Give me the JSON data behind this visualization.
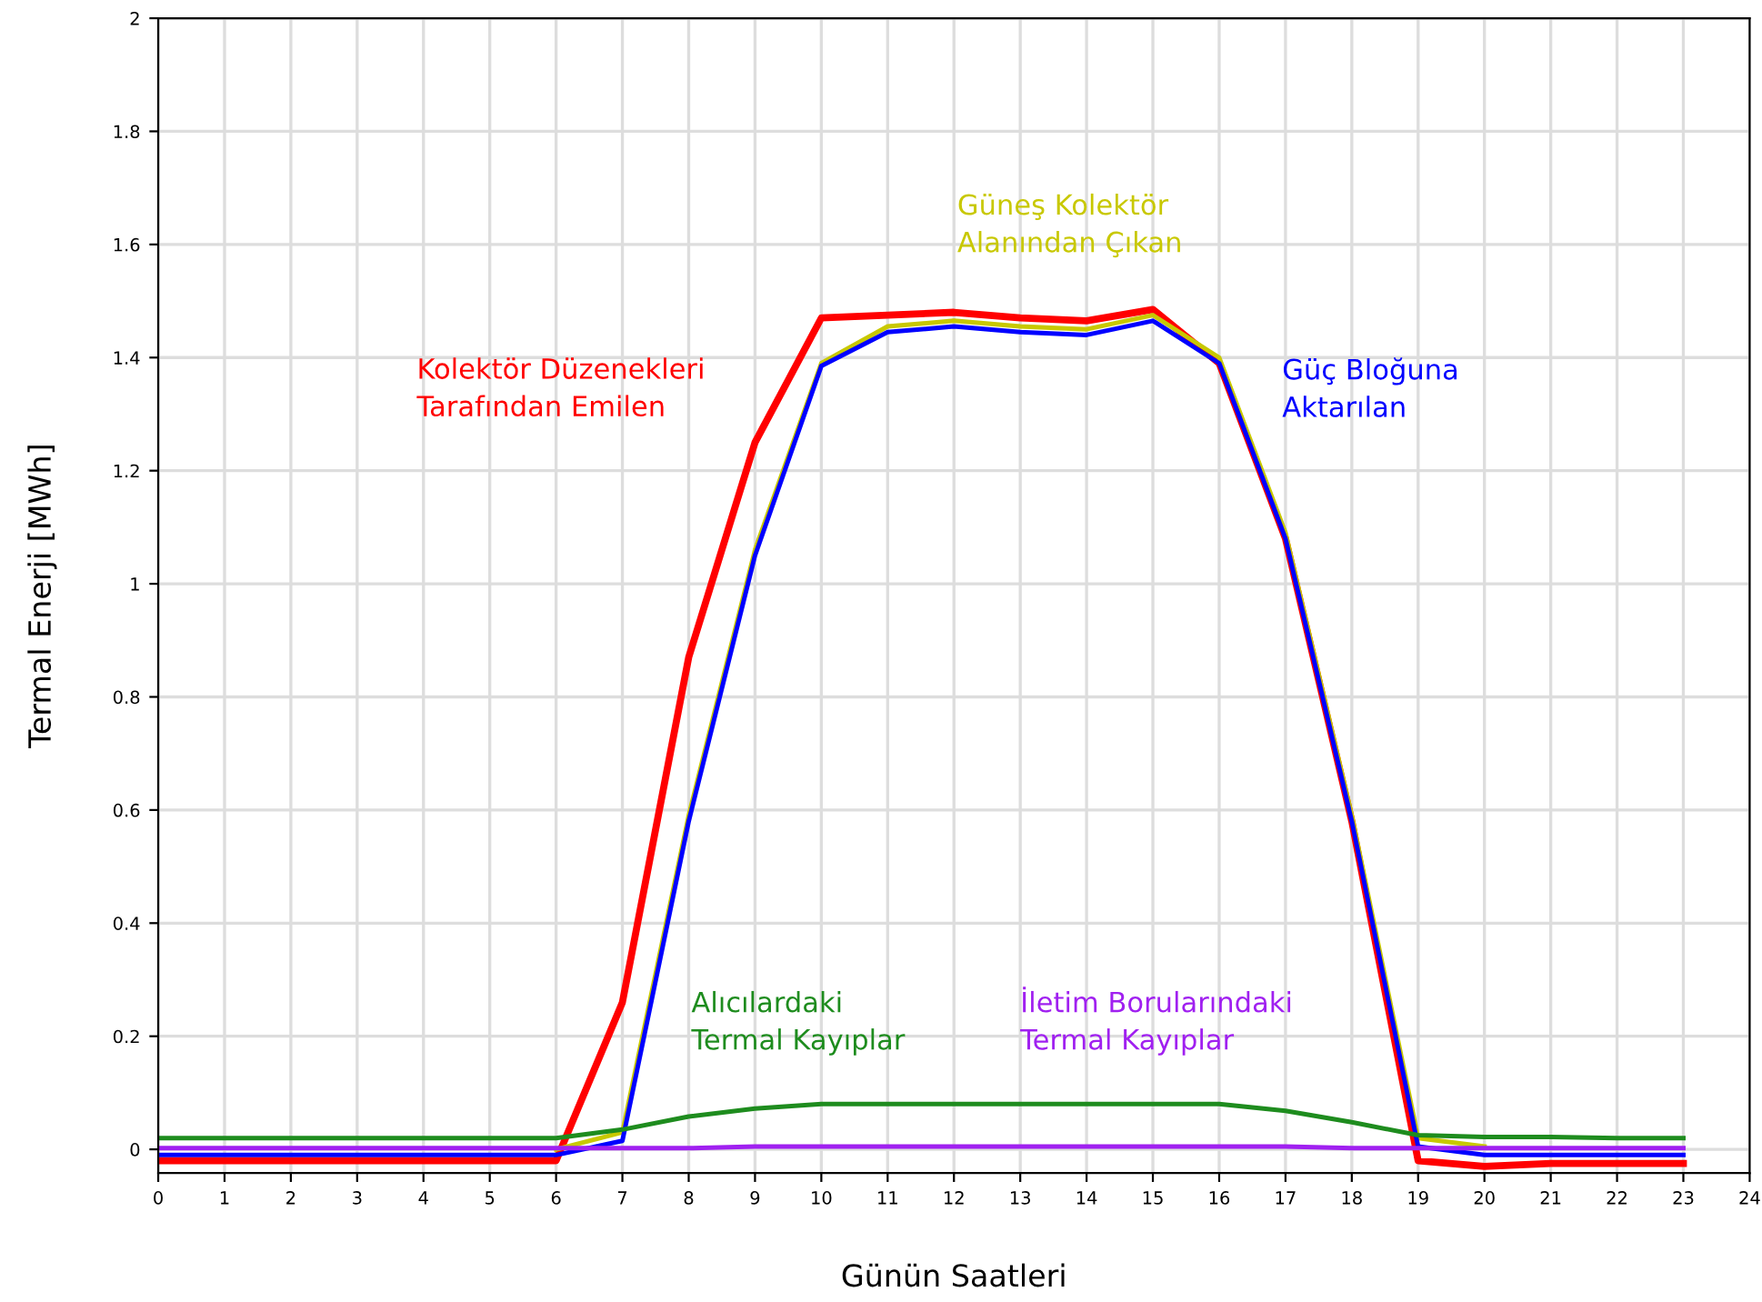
{
  "chart_data": {
    "type": "line",
    "xlabel": "Günün Saatleri",
    "ylabel": "Termal Enerji [MWh]",
    "x": [
      0,
      1,
      2,
      3,
      4,
      5,
      6,
      7,
      8,
      9,
      10,
      11,
      12,
      13,
      14,
      15,
      16,
      17,
      18,
      19,
      20,
      21,
      22,
      23
    ],
    "series": [
      {
        "name": "Kolektör Düzenekleri\nTarafından Emilen",
        "color": "#ff0000",
        "values": [
          -0.02,
          -0.02,
          -0.02,
          -0.02,
          -0.02,
          -0.02,
          -0.02,
          0.26,
          0.87,
          1.25,
          1.47,
          1.475,
          1.48,
          1.47,
          1.465,
          1.485,
          1.39,
          1.08,
          0.58,
          -0.02,
          -0.03,
          -0.025,
          -0.025,
          -0.025
        ]
      },
      {
        "name": "Güneş Kolektör\nAlanından Çıkan",
        "color": "#c8c800",
        "values": [
          null,
          null,
          null,
          null,
          null,
          null,
          0,
          0.03,
          0.59,
          1.06,
          1.39,
          1.455,
          1.465,
          1.455,
          1.45,
          1.475,
          1.4,
          1.09,
          0.59,
          0.02,
          0.005,
          null,
          null,
          null
        ]
      },
      {
        "name": "Güç Bloğuna\nAktarılan",
        "color": "#0000ff",
        "values": [
          -0.01,
          -0.01,
          -0.01,
          -0.01,
          -0.01,
          -0.01,
          -0.01,
          0.015,
          0.58,
          1.05,
          1.385,
          1.445,
          1.455,
          1.445,
          1.44,
          1.465,
          1.39,
          1.08,
          0.58,
          0.005,
          -0.01,
          -0.01,
          -0.01,
          -0.01
        ]
      },
      {
        "name": "Alıcılardaki\nTermal Kayıplar",
        "color": "#1e8c1e",
        "values": [
          0.02,
          0.02,
          0.02,
          0.02,
          0.02,
          0.02,
          0.02,
          0.035,
          0.058,
          0.072,
          0.08,
          0.08,
          0.08,
          0.08,
          0.08,
          0.08,
          0.08,
          0.068,
          0.048,
          0.025,
          0.022,
          0.022,
          0.02,
          0.02
        ]
      },
      {
        "name": "İletim Borularındaki\nTermal Kayıplar",
        "color": "#a020f0",
        "values": [
          0.002,
          0.002,
          0.002,
          0.002,
          0.002,
          0.002,
          0.002,
          0.002,
          0.002,
          0.005,
          0.005,
          0.005,
          0.005,
          0.005,
          0.005,
          0.005,
          0.005,
          0.005,
          0.002,
          0.002,
          0.002,
          0.002,
          0.002,
          0.002
        ]
      }
    ],
    "xlim": [
      0,
      24
    ],
    "ylim": [
      -0.042,
      2
    ],
    "xticks": [
      0,
      1,
      2,
      3,
      4,
      5,
      6,
      7,
      8,
      9,
      10,
      11,
      12,
      13,
      14,
      15,
      16,
      17,
      18,
      19,
      20,
      21,
      22,
      23,
      24
    ],
    "yticks": [
      0,
      0.2,
      0.4,
      0.6,
      0.8,
      1,
      1.2,
      1.4,
      1.6,
      1.8,
      2
    ],
    "grid": true,
    "legend": false,
    "marker": "none",
    "line_style": "solid"
  }
}
